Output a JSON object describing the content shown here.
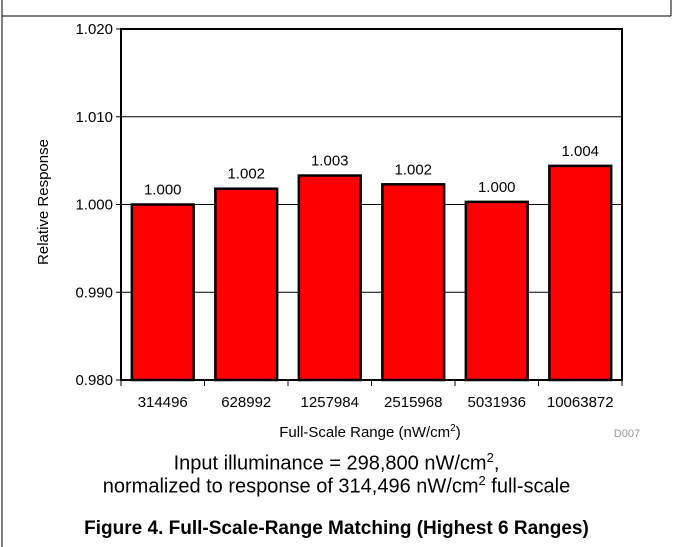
{
  "chart_data": {
    "type": "bar",
    "categories": [
      "314496",
      "628992",
      "1257984",
      "2515968",
      "5031936",
      "10063872"
    ],
    "values": [
      1.0,
      1.0018,
      1.0033,
      1.0023,
      1.0003,
      1.0044
    ],
    "value_labels": [
      "1.000",
      "1.002",
      "1.003",
      "1.002",
      "1.000",
      "1.004"
    ],
    "ylabel": "Relative Response",
    "xlabel_main": "Full-Scale Range (nW/cm",
    "xlabel_sup": "2",
    "xlabel_tail": ")",
    "ylim": [
      0.98,
      1.02
    ],
    "yticks": [
      0.98,
      0.99,
      1.0,
      1.01,
      1.02
    ],
    "ytick_labels": [
      "0.980",
      "0.990",
      "1.000",
      "1.010",
      "1.020"
    ],
    "grid": true,
    "bar_color": "#ff0000",
    "bar_edge_color": "#000000",
    "code": "D007"
  },
  "caption": {
    "line1_main": "Input illuminance = 298,800 nW/cm",
    "line1_sup": "2",
    "line1_tail": ",",
    "line2_main": "normalized to response of 314,496 nW/cm",
    "line2_sup": "2",
    "line2_tail": " full-scale"
  },
  "figure_title": "Figure 4. Full-Scale-Range Matching (Highest 6 Ranges)"
}
